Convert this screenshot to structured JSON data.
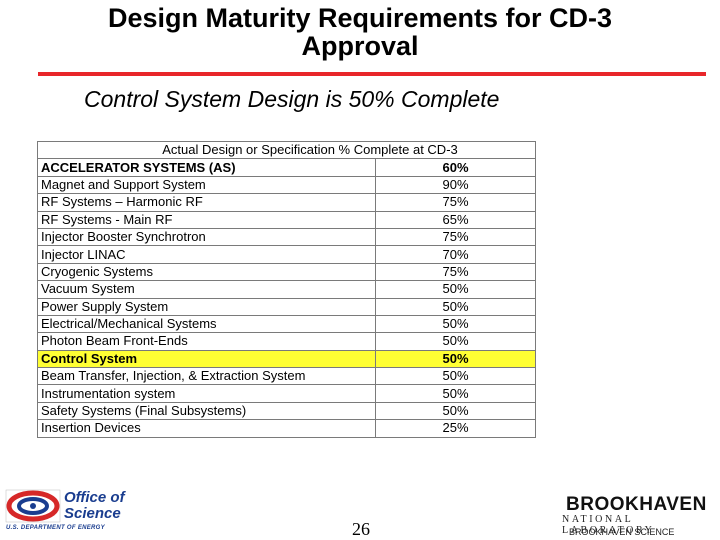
{
  "slide": {
    "title_line1": "Design Maturity Requirements for CD-3",
    "title_line2": "Approval",
    "subtitle": "Control System Design is 50% Complete",
    "page_number": "26"
  },
  "table": {
    "header": "Actual Design or Specification % Complete at CD-3",
    "rows": [
      {
        "name": "ACCELERATOR SYSTEMS  (AS)",
        "pct": "60%"
      },
      {
        "name": "Magnet and Support System",
        "pct": "90%"
      },
      {
        "name": "RF Systems – Harmonic RF",
        "pct": "75%"
      },
      {
        "name": "RF Systems - Main RF",
        "pct": "65%"
      },
      {
        "name": "Injector Booster Synchrotron",
        "pct": "75%"
      },
      {
        "name": "Injector LINAC",
        "pct": "70%"
      },
      {
        "name": "Cryogenic Systems",
        "pct": "75%"
      },
      {
        "name": "Vacuum System",
        "pct": "50%"
      },
      {
        "name": "Power Supply System",
        "pct": "50%"
      },
      {
        "name": "Electrical/Mechanical Systems",
        "pct": "50%"
      },
      {
        "name": "Photon Beam Front-Ends",
        "pct": "50%"
      },
      {
        "name": "Control System",
        "pct": "50%"
      },
      {
        "name": "Beam Transfer, Injection, & Extraction System",
        "pct": "50%"
      },
      {
        "name": "Instrumentation system",
        "pct": "50%"
      },
      {
        "name": "Safety Systems (Final Subsystems)",
        "pct": "50%"
      },
      {
        "name": "Insertion Devices",
        "pct": "25%"
      }
    ]
  },
  "footer": {
    "office_line1": "Office of",
    "office_line2": "Science",
    "doe": "U.S. DEPARTMENT OF ENERGY",
    "bnl_name": "BROOKHAVEN",
    "bnl_lab": "NATIONAL LABORATORY",
    "bnl_assoc": "BROOKHAVEN SCIENCE"
  },
  "colors": {
    "accent_rule": "#e8262a",
    "highlight": "#ffff33",
    "office_blue": "#1a3d8f",
    "office_red": "#d62828"
  }
}
